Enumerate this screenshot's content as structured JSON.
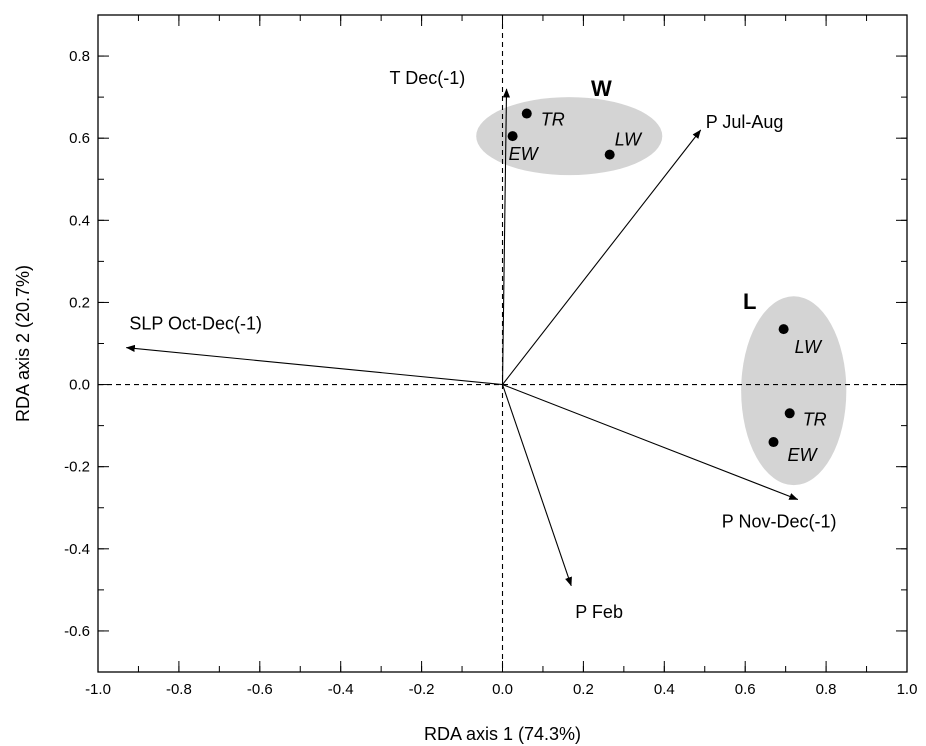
{
  "chart_data": {
    "type": "scatter",
    "subtype": "rda-biplot",
    "xlabel": "RDA axis 1 (74.3%)",
    "ylabel": "RDA axis 2 (20.7%)",
    "xlim": [
      -1.0,
      1.0
    ],
    "ylim": [
      -0.7,
      0.9
    ],
    "xticks": [
      -1.0,
      -0.8,
      -0.6,
      -0.4,
      -0.2,
      0.0,
      0.2,
      0.4,
      0.6,
      0.8,
      1.0
    ],
    "xtick_labels": [
      "-1.0",
      "-0.8",
      "-0.6",
      "-0.4",
      "-0.2",
      "0.0",
      "0.2",
      "0.4",
      "0.6",
      "0.8",
      "1.0"
    ],
    "yticks": [
      -0.6,
      -0.4,
      -0.2,
      0.0,
      0.2,
      0.4,
      0.6,
      0.8
    ],
    "ytick_labels": [
      "-0.6",
      "-0.4",
      "-0.2",
      "0.0",
      "0.2",
      "0.4",
      "0.6",
      "0.8"
    ],
    "grid": false,
    "reference_lines": {
      "x": 0,
      "y": 0,
      "style": "dashed"
    },
    "vectors": [
      {
        "label": "T Dec(-1)",
        "x": 0.01,
        "y": 0.72
      },
      {
        "label": "P Jul-Aug",
        "x": 0.49,
        "y": 0.62
      },
      {
        "label": "SLP Oct-Dec(-1)",
        "x": -0.93,
        "y": 0.09
      },
      {
        "label": "P Nov-Dec(-1)",
        "x": 0.73,
        "y": -0.28
      },
      {
        "label": "P Feb",
        "x": 0.17,
        "y": -0.49
      }
    ],
    "groups": [
      {
        "name": "W",
        "ellipse": {
          "cx": 0.165,
          "cy": 0.605,
          "rx": 0.23,
          "ry": 0.095
        },
        "points": [
          {
            "label": "TR",
            "x": 0.06,
            "y": 0.66
          },
          {
            "label": "EW",
            "x": 0.025,
            "y": 0.605
          },
          {
            "label": "LW",
            "x": 0.265,
            "y": 0.56
          }
        ]
      },
      {
        "name": "L",
        "ellipse": {
          "cx": 0.72,
          "cy": -0.015,
          "rx": 0.13,
          "ry": 0.23
        },
        "points": [
          {
            "label": "LW",
            "x": 0.695,
            "y": 0.135
          },
          {
            "label": "TR",
            "x": 0.71,
            "y": -0.07
          },
          {
            "label": "EW",
            "x": 0.67,
            "y": -0.14
          }
        ]
      }
    ],
    "colors": {
      "ellipse_fill": "#d4d4d4",
      "ink": "#000000"
    }
  }
}
